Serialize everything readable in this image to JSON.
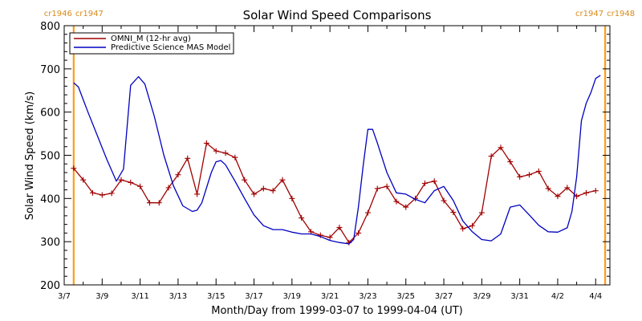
{
  "chart_data": {
    "type": "line",
    "title": "Solar Wind Speed Comparisons",
    "xlabel": "Month/Day from 1999-03-07 to 1999-04-04 (UT)",
    "ylabel": "Solar Wind Speed (km/s)",
    "xlim": [
      "1999-03-07",
      "1999-04-04T18:00"
    ],
    "ylim": [
      200,
      800
    ],
    "x_ticks": [
      "3/7",
      "3/9",
      "3/11",
      "3/13",
      "3/15",
      "3/17",
      "3/19",
      "3/21",
      "3/23",
      "3/25",
      "3/27",
      "3/29",
      "3/31",
      "4/2",
      "4/4"
    ],
    "y_ticks": [
      200,
      300,
      400,
      500,
      600,
      700,
      800
    ],
    "grid": false,
    "legend_position": "top-left",
    "rotation_markers": [
      {
        "date": "1999-03-07T12:00",
        "left_label": "cr1946",
        "right_label": "cr1947"
      },
      {
        "date": "1999-04-04T12:00",
        "left_label": "cr1947",
        "right_label": "cr1948"
      }
    ],
    "series": [
      {
        "name": "OMNI_M (12-hr avg)",
        "color": "#a00000",
        "markers": true,
        "points": [
          [
            "1999-03-07T12:00",
            470
          ],
          [
            "1999-03-08T00:00",
            443
          ],
          [
            "1999-03-08T12:00",
            413
          ],
          [
            "1999-03-09T00:00",
            408
          ],
          [
            "1999-03-09T12:00",
            412
          ],
          [
            "1999-03-10T00:00",
            443
          ],
          [
            "1999-03-10T12:00",
            437
          ],
          [
            "1999-03-11T00:00",
            428
          ],
          [
            "1999-03-11T12:00",
            390
          ],
          [
            "1999-03-12T00:00",
            390
          ],
          [
            "1999-03-12T12:00",
            425
          ],
          [
            "1999-03-13T00:00",
            455
          ],
          [
            "1999-03-13T12:00",
            493
          ],
          [
            "1999-03-14T00:00",
            410
          ],
          [
            "1999-03-14T12:00",
            528
          ],
          [
            "1999-03-15T00:00",
            510
          ],
          [
            "1999-03-15T12:00",
            505
          ],
          [
            "1999-03-16T00:00",
            495
          ],
          [
            "1999-03-16T12:00",
            443
          ],
          [
            "1999-03-17T00:00",
            410
          ],
          [
            "1999-03-17T12:00",
            423
          ],
          [
            "1999-03-18T00:00",
            418
          ],
          [
            "1999-03-18T12:00",
            443
          ],
          [
            "1999-03-19T00:00",
            400
          ],
          [
            "1999-03-19T12:00",
            355
          ],
          [
            "1999-03-20T00:00",
            323
          ],
          [
            "1999-03-20T12:00",
            315
          ],
          [
            "1999-03-21T00:00",
            310
          ],
          [
            "1999-03-21T12:00",
            333
          ],
          [
            "1999-03-22T00:00",
            298
          ],
          [
            "1999-03-22T12:00",
            320
          ],
          [
            "1999-03-23T00:00",
            367
          ],
          [
            "1999-03-23T12:00",
            423
          ],
          [
            "1999-03-24T00:00",
            428
          ],
          [
            "1999-03-24T12:00",
            393
          ],
          [
            "1999-03-25T00:00",
            380
          ],
          [
            "1999-03-25T12:00",
            400
          ],
          [
            "1999-03-26T00:00",
            435
          ],
          [
            "1999-03-26T12:00",
            440
          ],
          [
            "1999-03-27T00:00",
            395
          ],
          [
            "1999-03-27T12:00",
            368
          ],
          [
            "1999-03-28T00:00",
            330
          ],
          [
            "1999-03-28T12:00",
            337
          ],
          [
            "1999-03-29T00:00",
            367
          ],
          [
            "1999-03-29T12:00",
            498
          ],
          [
            "1999-03-30T00:00",
            518
          ],
          [
            "1999-03-30T12:00",
            485
          ],
          [
            "1999-03-31T00:00",
            450
          ],
          [
            "1999-03-31T12:00",
            455
          ],
          [
            "1999-04-01T00:00",
            463
          ],
          [
            "1999-04-01T12:00",
            423
          ],
          [
            "1999-04-02T00:00",
            405
          ],
          [
            "1999-04-02T12:00",
            425
          ],
          [
            "1999-04-03T00:00",
            405
          ],
          [
            "1999-04-03T12:00",
            413
          ],
          [
            "1999-04-04T00:00",
            418
          ]
        ]
      },
      {
        "name": "Predictive Science MAS Model",
        "color": "#0000c0",
        "markers": false,
        "points": [
          [
            "1999-03-07T12:00",
            668
          ],
          [
            "1999-03-07T18:00",
            658
          ],
          [
            "1999-03-08T06:00",
            600
          ],
          [
            "1999-03-08T18:00",
            545
          ],
          [
            "1999-03-09T06:00",
            490
          ],
          [
            "1999-03-09T18:00",
            440
          ],
          [
            "1999-03-10T03:00",
            468
          ],
          [
            "1999-03-10T12:00",
            662
          ],
          [
            "1999-03-10T22:00",
            682
          ],
          [
            "1999-03-11T06:00",
            665
          ],
          [
            "1999-03-11T18:00",
            590
          ],
          [
            "1999-03-12T06:00",
            500
          ],
          [
            "1999-03-12T18:00",
            430
          ],
          [
            "1999-03-13T06:00",
            383
          ],
          [
            "1999-03-13T18:00",
            370
          ],
          [
            "1999-03-14T00:00",
            373
          ],
          [
            "1999-03-14T06:00",
            390
          ],
          [
            "1999-03-14T18:00",
            460
          ],
          [
            "1999-03-15T00:00",
            485
          ],
          [
            "1999-03-15T06:00",
            488
          ],
          [
            "1999-03-15T12:00",
            478
          ],
          [
            "1999-03-16T00:00",
            440
          ],
          [
            "1999-03-16T12:00",
            400
          ],
          [
            "1999-03-17T00:00",
            362
          ],
          [
            "1999-03-17T12:00",
            337
          ],
          [
            "1999-03-18T00:00",
            328
          ],
          [
            "1999-03-18T12:00",
            328
          ],
          [
            "1999-03-19T00:00",
            322
          ],
          [
            "1999-03-19T12:00",
            318
          ],
          [
            "1999-03-20T00:00",
            318
          ],
          [
            "1999-03-20T12:00",
            312
          ],
          [
            "1999-03-21T00:00",
            303
          ],
          [
            "1999-03-21T12:00",
            298
          ],
          [
            "1999-03-22T00:00",
            295
          ],
          [
            "1999-03-22T06:00",
            305
          ],
          [
            "1999-03-22T12:00",
            380
          ],
          [
            "1999-03-22T18:00",
            475
          ],
          [
            "1999-03-23T00:00",
            560
          ],
          [
            "1999-03-23T06:00",
            560
          ],
          [
            "1999-03-23T12:00",
            528
          ],
          [
            "1999-03-24T00:00",
            460
          ],
          [
            "1999-03-24T12:00",
            413
          ],
          [
            "1999-03-25T00:00",
            410
          ],
          [
            "1999-03-25T12:00",
            398
          ],
          [
            "1999-03-26T00:00",
            390
          ],
          [
            "1999-03-26T12:00",
            418
          ],
          [
            "1999-03-27T00:00",
            428
          ],
          [
            "1999-03-27T12:00",
            395
          ],
          [
            "1999-03-28T00:00",
            348
          ],
          [
            "1999-03-28T12:00",
            323
          ],
          [
            "1999-03-29T00:00",
            305
          ],
          [
            "1999-03-29T12:00",
            302
          ],
          [
            "1999-03-30T00:00",
            318
          ],
          [
            "1999-03-30T12:00",
            380
          ],
          [
            "1999-03-31T00:00",
            385
          ],
          [
            "1999-03-31T12:00",
            362
          ],
          [
            "1999-04-01T00:00",
            338
          ],
          [
            "1999-04-01T12:00",
            323
          ],
          [
            "1999-04-02T00:00",
            322
          ],
          [
            "1999-04-02T12:00",
            332
          ],
          [
            "1999-04-02T18:00",
            370
          ],
          [
            "1999-04-03T00:00",
            450
          ],
          [
            "1999-04-03T06:00",
            580
          ],
          [
            "1999-04-03T12:00",
            620
          ],
          [
            "1999-04-03T18:00",
            645
          ],
          [
            "1999-04-04T00:00",
            678
          ],
          [
            "1999-04-04T06:00",
            685
          ]
        ]
      }
    ]
  }
}
